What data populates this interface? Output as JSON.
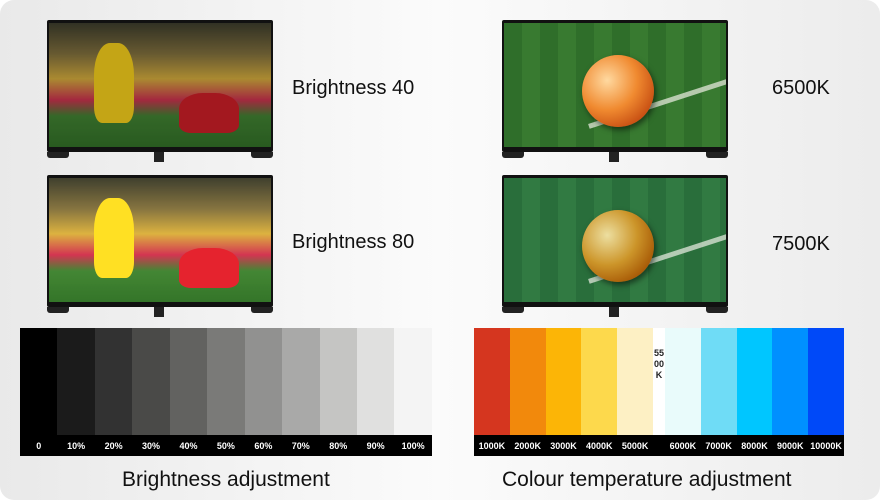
{
  "brightness_examples": [
    {
      "label": "Brightness 40",
      "level": 0.4
    },
    {
      "label": "Brightness 80",
      "level": 0.8
    }
  ],
  "colour_examples": [
    {
      "label": "6500K"
    },
    {
      "label": "7500K"
    }
  ],
  "brightness_scale": {
    "title": "Brightness adjustment",
    "labels": [
      "0",
      "10%",
      "20%",
      "30%",
      "40%",
      "50%",
      "60%",
      "70%",
      "80%",
      "90%",
      "100%"
    ],
    "colors": [
      "#000000",
      "#1b1b1b",
      "#323232",
      "#4a4a48",
      "#626260",
      "#7a7a78",
      "#919190",
      "#a9a9a8",
      "#c5c5c3",
      "#e0e0df",
      "#f4f4f4"
    ]
  },
  "colour_scale": {
    "title": "Colour temperature adjustment",
    "labels": [
      "1000K",
      "2000K",
      "3000K",
      "4000K",
      "5000K",
      "6000K",
      "7000K",
      "8000K",
      "9000K",
      "10000K"
    ],
    "colors": [
      "#d5361f",
      "#f2890c",
      "#fcb506",
      "#fdd94c",
      "#fdf0c4",
      "#e9fbfb",
      "#6fdcf6",
      "#00c6ff",
      "#0090ff",
      "#0049f8"
    ],
    "midpoint_label": "5500K",
    "midpoint_color": "#ffffff"
  }
}
